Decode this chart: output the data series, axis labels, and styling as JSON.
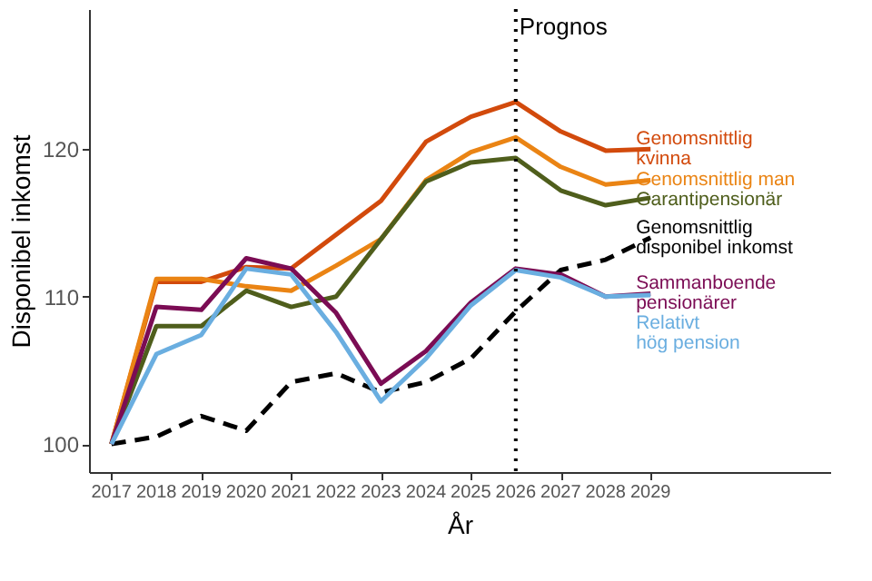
{
  "chart_data": {
    "type": "line",
    "xlabel": "År",
    "ylabel": "Disponibel inkomst",
    "x": [
      2017,
      2018,
      2019,
      2020,
      2021,
      2022,
      2023,
      2024,
      2025,
      2026,
      2027,
      2028,
      2029
    ],
    "series": [
      {
        "name": "Genomsnittlig kvinna",
        "color": "#d24a0c",
        "values": [
          100,
          111.0,
          111.0,
          112.0,
          111.9,
          114.2,
          116.5,
          120.5,
          122.2,
          123.2,
          121.2,
          119.9,
          120.0
        ]
      },
      {
        "name": "Genomsnittlig man",
        "color": "#ea8414",
        "values": [
          100,
          111.2,
          111.2,
          110.7,
          110.4,
          112.1,
          113.9,
          117.9,
          119.8,
          120.8,
          118.8,
          117.6,
          117.9
        ]
      },
      {
        "name": "Garantipensionär",
        "color": "#4f5e1c",
        "values": [
          100,
          108.0,
          108.0,
          110.4,
          109.3,
          110.0,
          113.9,
          117.8,
          119.1,
          119.4,
          117.2,
          116.2,
          116.7
        ]
      },
      {
        "name": "Genomsnittlig disponibel inkomst",
        "color": "#000000",
        "line_style": "dashed",
        "values": [
          100,
          100.5,
          101.9,
          100.9,
          104.2,
          104.8,
          103.5,
          104.2,
          105.8,
          109.0,
          111.8,
          112.5,
          114.0
        ]
      },
      {
        "name": "Sammanboende pensionärer",
        "color": "#7b0c54",
        "values": [
          100,
          109.3,
          109.1,
          112.6,
          111.9,
          108.9,
          104.1,
          106.3,
          109.6,
          111.9,
          111.5,
          110.0,
          110.2
        ]
      },
      {
        "name": "Relativt hög pension",
        "color": "#6aaee0",
        "values": [
          100,
          106.1,
          107.4,
          111.9,
          111.5,
          107.6,
          102.9,
          105.8,
          109.4,
          111.8,
          111.3,
          110.0,
          110.1
        ]
      }
    ],
    "xlim": [
      2016.5,
      2033
    ],
    "xticks": [
      2017,
      2018,
      2019,
      2020,
      2021,
      2022,
      2023,
      2024,
      2025,
      2026,
      2027,
      2028,
      2029
    ],
    "ylim": [
      98.1,
      129.5
    ],
    "yticks": [
      100,
      110,
      120
    ],
    "ref_lines": [
      {
        "axis": "x",
        "value": 2026,
        "label": "Prognos",
        "line_style": "dotted",
        "color": "#000000"
      }
    ],
    "grid": false,
    "legend": false,
    "line_style": "solid",
    "marker": "none"
  }
}
